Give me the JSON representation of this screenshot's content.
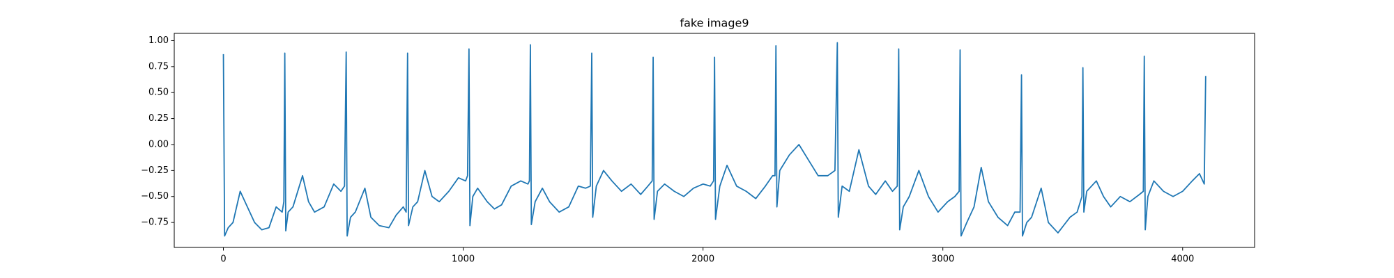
{
  "chart_data": {
    "type": "line",
    "title": "fake image9",
    "color": "#1f77b4",
    "grid": false,
    "xlim": [
      -205,
      4300
    ],
    "ylim": [
      -0.99,
      1.07
    ],
    "xticks": [
      0,
      1000,
      2000,
      3000,
      4000
    ],
    "yticks": [
      {
        "value": -0.75,
        "label": "−0.75"
      },
      {
        "value": -0.5,
        "label": "−0.50"
      },
      {
        "value": -0.25,
        "label": "−0.25"
      },
      {
        "value": 0,
        "label": "0.00"
      },
      {
        "value": 0.25,
        "label": "0.25"
      },
      {
        "value": 0.5,
        "label": "0.50"
      },
      {
        "value": 0.75,
        "label": "0.75"
      },
      {
        "value": 1,
        "label": "1.00"
      }
    ],
    "x": [
      0,
      5,
      20,
      40,
      70,
      100,
      130,
      160,
      190,
      220,
      245,
      252,
      256,
      260,
      270,
      290,
      330,
      355,
      380,
      420,
      460,
      490,
      505,
      512,
      516,
      530,
      550,
      590,
      615,
      650,
      690,
      720,
      750,
      762,
      768,
      772,
      790,
      810,
      840,
      870,
      900,
      940,
      980,
      1010,
      1018,
      1024,
      1028,
      1040,
      1060,
      1100,
      1130,
      1160,
      1200,
      1240,
      1270,
      1276,
      1280,
      1284,
      1300,
      1330,
      1360,
      1400,
      1440,
      1480,
      1510,
      1530,
      1536,
      1540,
      1555,
      1585,
      1620,
      1660,
      1700,
      1740,
      1770,
      1788,
      1792,
      1796,
      1810,
      1840,
      1880,
      1920,
      1960,
      2000,
      2030,
      2044,
      2048,
      2052,
      2070,
      2100,
      2140,
      2180,
      2220,
      2260,
      2290,
      2300,
      2304,
      2308,
      2320,
      2360,
      2400,
      2440,
      2480,
      2520,
      2550,
      2560,
      2564,
      2580,
      2610,
      2650,
      2690,
      2720,
      2760,
      2790,
      2810,
      2816,
      2820,
      2835,
      2860,
      2900,
      2940,
      2980,
      3020,
      3050,
      3068,
      3072,
      3076,
      3100,
      3130,
      3160,
      3190,
      3230,
      3270,
      3300,
      3322,
      3328,
      3332,
      3350,
      3370,
      3410,
      3440,
      3480,
      3530,
      3560,
      3580,
      3584,
      3588,
      3600,
      3640,
      3670,
      3700,
      3740,
      3780,
      3820,
      3836,
      3840,
      3844,
      3855,
      3880,
      3920,
      3960,
      4000,
      4040,
      4070,
      4090,
      4096
    ],
    "values": [
      0.87,
      -0.88,
      -0.8,
      -0.75,
      -0.45,
      -0.6,
      -0.75,
      -0.82,
      -0.8,
      -0.6,
      -0.65,
      -0.55,
      0.88,
      -0.83,
      -0.65,
      -0.6,
      -0.3,
      -0.55,
      -0.65,
      -0.6,
      -0.38,
      -0.45,
      -0.4,
      0.89,
      -0.88,
      -0.7,
      -0.65,
      -0.42,
      -0.7,
      -0.78,
      -0.8,
      -0.68,
      -0.6,
      -0.65,
      0.88,
      -0.78,
      -0.6,
      -0.55,
      -0.25,
      -0.5,
      -0.55,
      -0.45,
      -0.32,
      -0.35,
      -0.3,
      0.92,
      -0.78,
      -0.5,
      -0.42,
      -0.55,
      -0.62,
      -0.58,
      -0.4,
      -0.35,
      -0.38,
      -0.35,
      0.96,
      -0.77,
      -0.55,
      -0.42,
      -0.55,
      -0.65,
      -0.6,
      -0.4,
      -0.42,
      -0.4,
      0.88,
      -0.7,
      -0.4,
      -0.25,
      -0.35,
      -0.45,
      -0.38,
      -0.48,
      -0.4,
      -0.35,
      0.84,
      -0.72,
      -0.45,
      -0.38,
      -0.45,
      -0.5,
      -0.42,
      -0.38,
      -0.4,
      -0.35,
      0.84,
      -0.72,
      -0.4,
      -0.2,
      -0.4,
      -0.45,
      -0.52,
      -0.4,
      -0.3,
      -0.3,
      0.95,
      -0.6,
      -0.25,
      -0.1,
      0.0,
      -0.15,
      -0.3,
      -0.3,
      -0.25,
      0.98,
      -0.7,
      -0.4,
      -0.45,
      -0.05,
      -0.4,
      -0.48,
      -0.35,
      -0.45,
      -0.4,
      0.92,
      -0.82,
      -0.6,
      -0.5,
      -0.25,
      -0.5,
      -0.65,
      -0.55,
      -0.5,
      -0.45,
      0.91,
      -0.88,
      -0.75,
      -0.6,
      -0.22,
      -0.55,
      -0.7,
      -0.78,
      -0.65,
      -0.65,
      0.67,
      -0.88,
      -0.75,
      -0.7,
      -0.42,
      -0.75,
      -0.85,
      -0.7,
      -0.65,
      -0.5,
      0.74,
      -0.65,
      -0.45,
      -0.35,
      -0.5,
      -0.6,
      -0.5,
      -0.55,
      -0.48,
      -0.45,
      0.85,
      -0.82,
      -0.5,
      -0.35,
      -0.45,
      -0.5,
      -0.45,
      -0.35,
      -0.28,
      -0.38,
      0.66
    ]
  }
}
